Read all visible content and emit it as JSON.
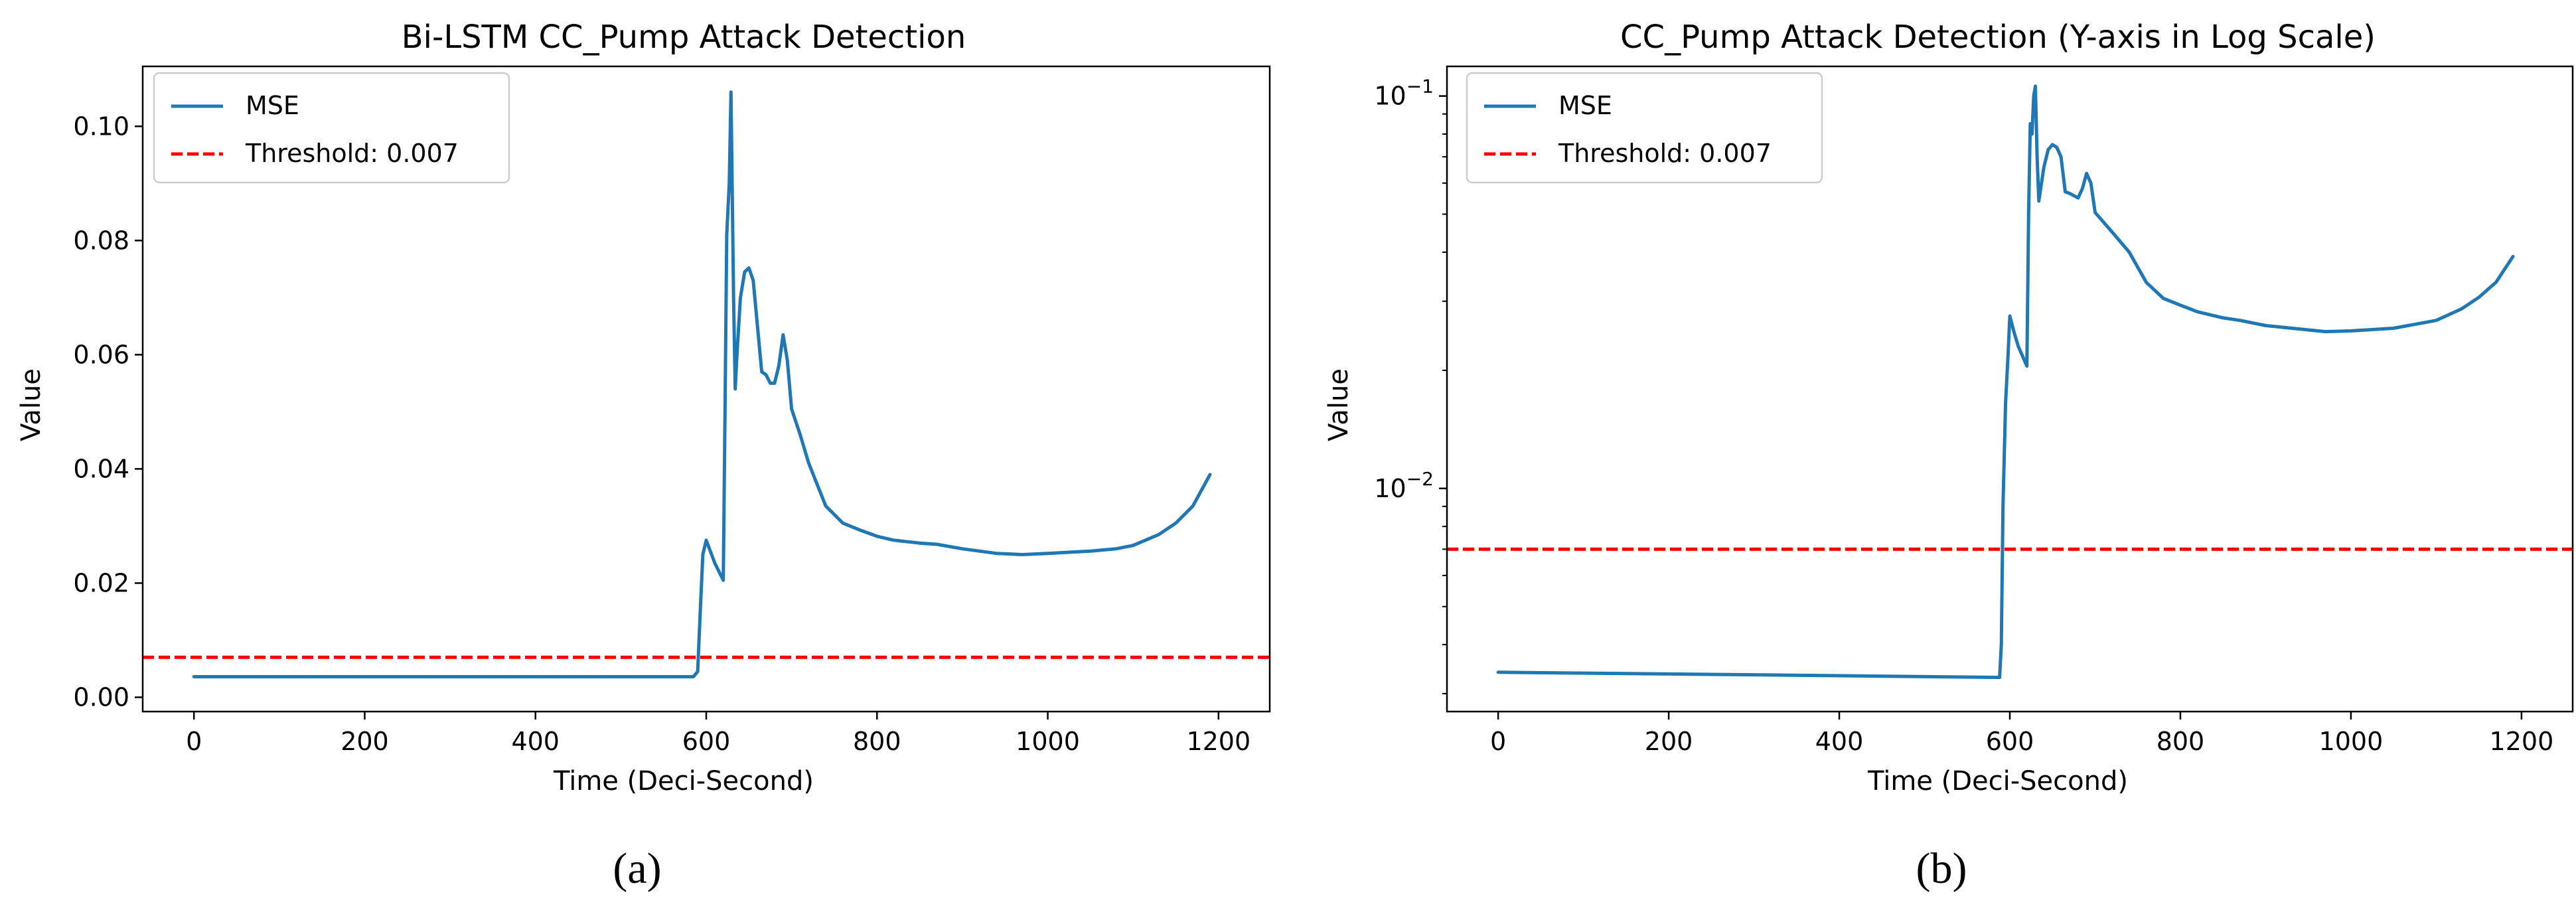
{
  "chart_data": [
    {
      "type": "line",
      "title": "Bi-LSTM CC_Pump Attack Detection",
      "xlabel": "Time (Deci-Second)",
      "ylabel": "Value",
      "xlim": [
        -60,
        1260
      ],
      "ylim": [
        -0.0025,
        0.1105
      ],
      "yscale": "linear",
      "xticks": [
        0,
        200,
        400,
        600,
        800,
        1000,
        1200
      ],
      "yticks": [
        0.0,
        0.02,
        0.04,
        0.06,
        0.08,
        0.1
      ],
      "ytick_labels": [
        "0.00",
        "0.02",
        "0.04",
        "0.06",
        "0.08",
        "0.10"
      ],
      "legend": {
        "position": "top-left",
        "entries": [
          "MSE",
          "Threshold: 0.007"
        ]
      },
      "caption": "(a)",
      "series": [
        {
          "name": "MSE",
          "color": "#1f77b4",
          "style": "solid",
          "x": [
            0,
            300,
            585,
            590,
            593,
            596,
            600,
            610,
            620,
            622,
            624,
            627,
            629,
            632,
            634,
            636,
            640,
            645,
            650,
            655,
            660,
            665,
            670,
            675,
            680,
            685,
            690,
            695,
            700,
            710,
            720,
            740,
            760,
            780,
            800,
            820,
            850,
            870,
            900,
            940,
            970,
            1000,
            1050,
            1080,
            1100,
            1130,
            1150,
            1170,
            1190
          ],
          "y": [
            0.0036,
            0.0036,
            0.0036,
            0.0045,
            0.015,
            0.025,
            0.0275,
            0.0235,
            0.0205,
            0.05,
            0.081,
            0.09,
            0.106,
            0.07,
            0.054,
            0.06,
            0.07,
            0.0745,
            0.0752,
            0.073,
            0.065,
            0.057,
            0.0565,
            0.055,
            0.055,
            0.058,
            0.0635,
            0.059,
            0.0505,
            0.046,
            0.041,
            0.0335,
            0.0305,
            0.0293,
            0.0282,
            0.0275,
            0.027,
            0.0268,
            0.026,
            0.0252,
            0.025,
            0.0252,
            0.0256,
            0.026,
            0.0266,
            0.0285,
            0.0305,
            0.0335,
            0.039
          ]
        },
        {
          "name": "Threshold: 0.007",
          "color": "#ff0000",
          "style": "dashed",
          "value": 0.007
        }
      ]
    },
    {
      "type": "line",
      "title": "CC_Pump Attack Detection (Y-axis in Log Scale)",
      "xlabel": "Time (Deci-Second)",
      "ylabel": "Value",
      "xlim": [
        -60,
        1260
      ],
      "ylim": [
        0.0027,
        0.119
      ],
      "yscale": "log",
      "xticks": [
        0,
        200,
        400,
        600,
        800,
        1000,
        1200
      ],
      "yticks": [
        0.01,
        0.1
      ],
      "ytick_labels": [
        {
          "base": "10",
          "exp": "−2"
        },
        {
          "base": "10",
          "exp": "−1"
        }
      ],
      "yminor_ticks": [
        0.003,
        0.004,
        0.005,
        0.006,
        0.007,
        0.008,
        0.009,
        0.02,
        0.03,
        0.04,
        0.05,
        0.06,
        0.07,
        0.08,
        0.09
      ],
      "legend": {
        "position": "top-left",
        "entries": [
          "MSE",
          "Threshold: 0.007"
        ]
      },
      "caption": "(b)",
      "series": [
        {
          "name": "MSE",
          "color": "#1f77b4",
          "style": "solid",
          "x": [
            0,
            300,
            585,
            588,
            590,
            592,
            595,
            598,
            600,
            605,
            610,
            620,
            622,
            624,
            626,
            628,
            630,
            632,
            634,
            640,
            645,
            650,
            655,
            660,
            665,
            670,
            680,
            685,
            690,
            695,
            700,
            720,
            740,
            760,
            780,
            800,
            820,
            850,
            870,
            900,
            970,
            1000,
            1050,
            1100,
            1130,
            1150,
            1170,
            1190
          ],
          "y": [
            0.0034,
            0.00335,
            0.0033,
            0.0033,
            0.004,
            0.009,
            0.0165,
            0.022,
            0.0275,
            0.025,
            0.023,
            0.0205,
            0.05,
            0.085,
            0.08,
            0.1,
            0.106,
            0.07,
            0.054,
            0.066,
            0.073,
            0.0752,
            0.074,
            0.07,
            0.057,
            0.0565,
            0.055,
            0.058,
            0.0635,
            0.06,
            0.0505,
            0.045,
            0.04,
            0.0335,
            0.0305,
            0.0293,
            0.0282,
            0.0272,
            0.0268,
            0.026,
            0.0251,
            0.0252,
            0.0256,
            0.0268,
            0.0287,
            0.0307,
            0.0335,
            0.039
          ]
        },
        {
          "name": "Threshold: 0.007",
          "color": "#ff0000",
          "style": "dashed",
          "value": 0.007
        }
      ]
    }
  ]
}
